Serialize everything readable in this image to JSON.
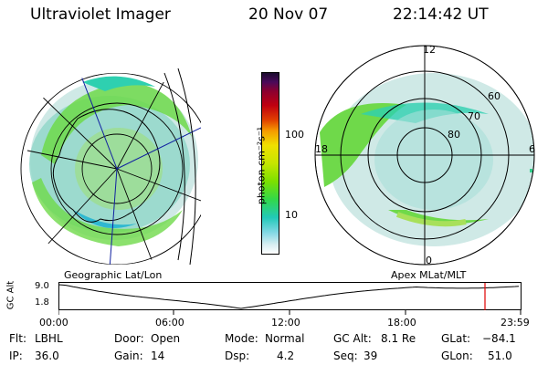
{
  "header": {
    "instrument": "Ultraviolet Imager",
    "date": "20 Nov 07",
    "time": "22:14:42 UT"
  },
  "colorbar": {
    "unit_label": "photon cm⁻²s⁻¹",
    "ticks": [
      "100",
      "10"
    ]
  },
  "polar": {
    "mlt_labels": [
      "12",
      "18",
      "6",
      "0"
    ],
    "mlat_labels": [
      "60",
      "70",
      "80"
    ]
  },
  "plot": {
    "left_title": "Geographic Lat/Lon",
    "right_title": "Apex MLat/MLT",
    "ylabel": "GC Alt",
    "y_ticks": [
      "9.0",
      "1.8"
    ],
    "x_ticks": [
      "00:00",
      "06:00",
      "12:00",
      "18:00",
      "23:59"
    ],
    "marker_color": "#e00000"
  },
  "status": {
    "flt_label": "Flt:",
    "flt_value": "LBHL",
    "door_label": "Door:",
    "door_value": "Open",
    "mode_label": "Mode:",
    "mode_value": "Normal",
    "gcalt_label": "GC Alt:",
    "gcalt_value": "8.1 Re",
    "glat_label": "GLat:",
    "glat_value": "−84.1",
    "ip_label": "IP:",
    "ip_value": "36.0",
    "gain_label": "Gain:",
    "gain_value": "14",
    "dsp_label": "Dsp:",
    "dsp_value": "4.2",
    "seq_label": "Seq:",
    "seq_value": "39",
    "glon_label": "GLon:",
    "glon_value": "51.0"
  }
}
